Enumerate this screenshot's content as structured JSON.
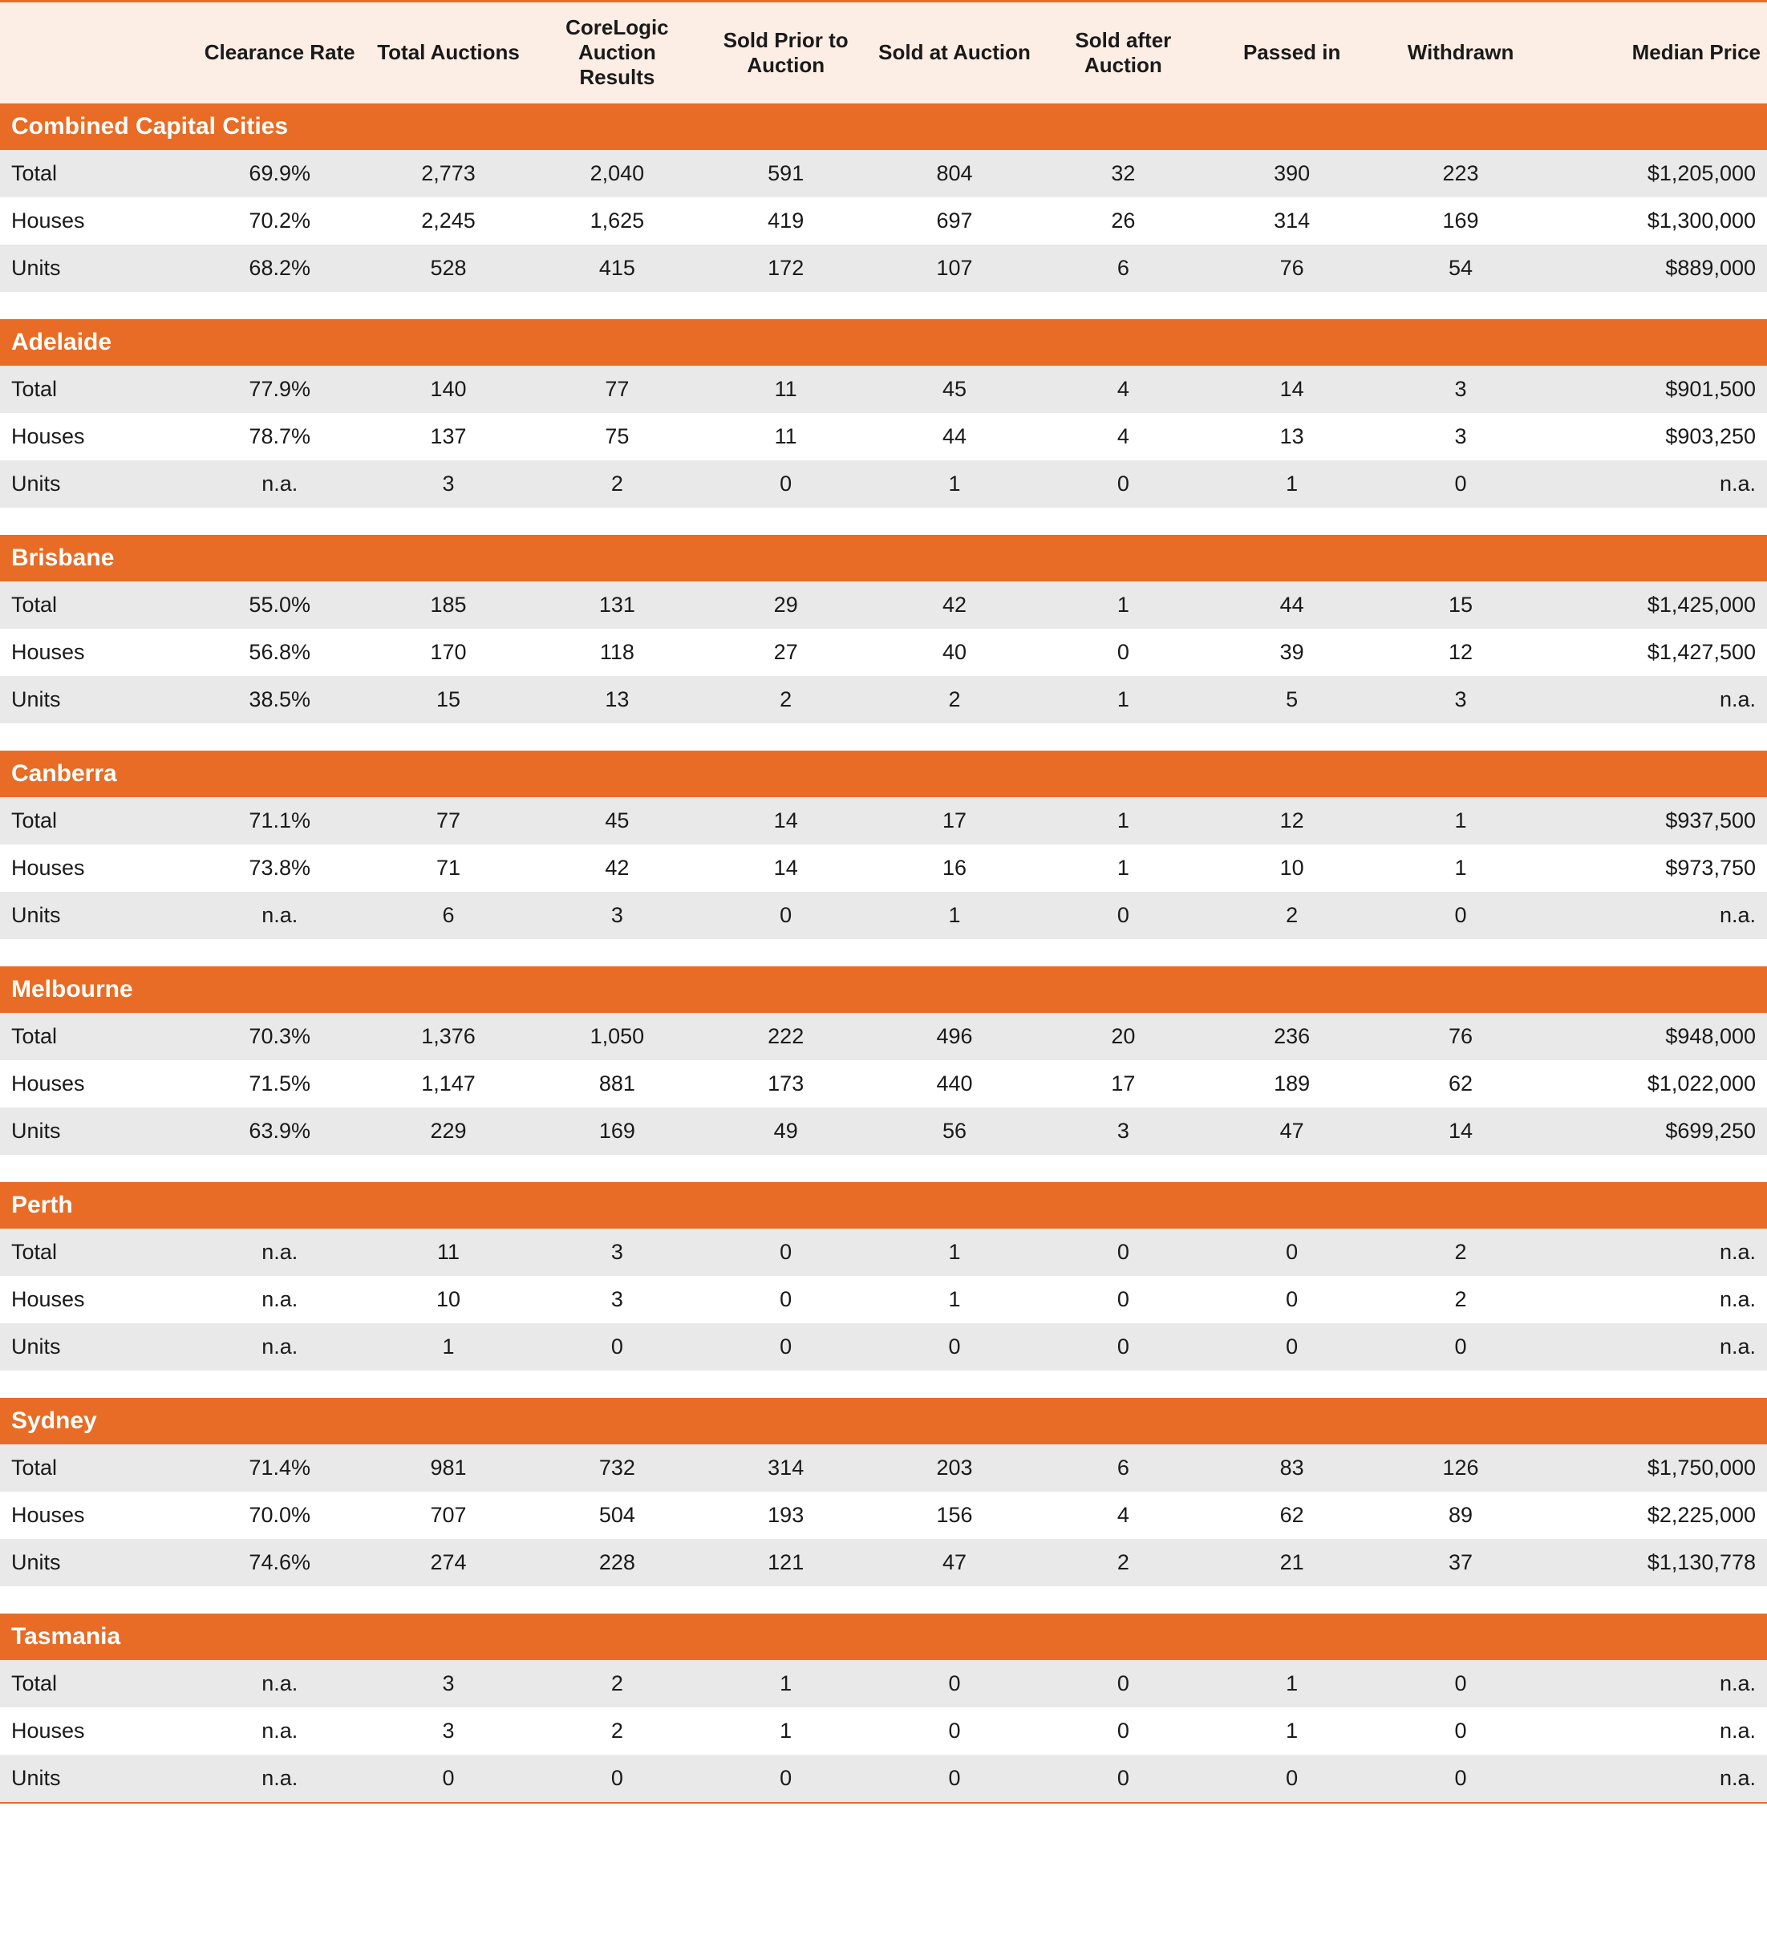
{
  "colors": {
    "accent": "#e86c25",
    "header_bg": "#fdeee5",
    "row_even": "#e9e9e9",
    "row_odd": "#ffffff",
    "text": "#1a1a1a",
    "section_text": "#ffffff"
  },
  "typography": {
    "header_fontsize": 26,
    "header_weight": 700,
    "section_fontsize": 30,
    "section_weight": 700,
    "cell_fontsize": 27,
    "cell_weight": 400
  },
  "columns": [
    "",
    "Clearance Rate",
    "Total Auctions",
    "CoreLogic Auction Results",
    "Sold Prior to Auction",
    "Sold at Auction",
    "Sold after Auction",
    "Passed in",
    "Withdrawn",
    "Median Price"
  ],
  "sections": [
    {
      "title": "Combined Capital Cities",
      "rows": [
        [
          "Total",
          "69.9%",
          "2,773",
          "2,040",
          "591",
          "804",
          "32",
          "390",
          "223",
          "$1,205,000"
        ],
        [
          "Houses",
          "70.2%",
          "2,245",
          "1,625",
          "419",
          "697",
          "26",
          "314",
          "169",
          "$1,300,000"
        ],
        [
          "Units",
          "68.2%",
          "528",
          "415",
          "172",
          "107",
          "6",
          "76",
          "54",
          "$889,000"
        ]
      ]
    },
    {
      "title": "Adelaide",
      "rows": [
        [
          "Total",
          "77.9%",
          "140",
          "77",
          "11",
          "45",
          "4",
          "14",
          "3",
          "$901,500"
        ],
        [
          "Houses",
          "78.7%",
          "137",
          "75",
          "11",
          "44",
          "4",
          "13",
          "3",
          "$903,250"
        ],
        [
          "Units",
          "n.a.",
          "3",
          "2",
          "0",
          "1",
          "0",
          "1",
          "0",
          "n.a."
        ]
      ]
    },
    {
      "title": "Brisbane",
      "rows": [
        [
          "Total",
          "55.0%",
          "185",
          "131",
          "29",
          "42",
          "1",
          "44",
          "15",
          "$1,425,000"
        ],
        [
          "Houses",
          "56.8%",
          "170",
          "118",
          "27",
          "40",
          "0",
          "39",
          "12",
          "$1,427,500"
        ],
        [
          "Units",
          "38.5%",
          "15",
          "13",
          "2",
          "2",
          "1",
          "5",
          "3",
          "n.a."
        ]
      ]
    },
    {
      "title": "Canberra",
      "rows": [
        [
          "Total",
          "71.1%",
          "77",
          "45",
          "14",
          "17",
          "1",
          "12",
          "1",
          "$937,500"
        ],
        [
          "Houses",
          "73.8%",
          "71",
          "42",
          "14",
          "16",
          "1",
          "10",
          "1",
          "$973,750"
        ],
        [
          "Units",
          "n.a.",
          "6",
          "3",
          "0",
          "1",
          "0",
          "2",
          "0",
          "n.a."
        ]
      ]
    },
    {
      "title": "Melbourne",
      "rows": [
        [
          "Total",
          "70.3%",
          "1,376",
          "1,050",
          "222",
          "496",
          "20",
          "236",
          "76",
          "$948,000"
        ],
        [
          "Houses",
          "71.5%",
          "1,147",
          "881",
          "173",
          "440",
          "17",
          "189",
          "62",
          "$1,022,000"
        ],
        [
          "Units",
          "63.9%",
          "229",
          "169",
          "49",
          "56",
          "3",
          "47",
          "14",
          "$699,250"
        ]
      ]
    },
    {
      "title": "Perth",
      "rows": [
        [
          "Total",
          "n.a.",
          "11",
          "3",
          "0",
          "1",
          "0",
          "0",
          "2",
          "n.a."
        ],
        [
          "Houses",
          "n.a.",
          "10",
          "3",
          "0",
          "1",
          "0",
          "0",
          "2",
          "n.a."
        ],
        [
          "Units",
          "n.a.",
          "1",
          "0",
          "0",
          "0",
          "0",
          "0",
          "0",
          "n.a."
        ]
      ]
    },
    {
      "title": "Sydney",
      "rows": [
        [
          "Total",
          "71.4%",
          "981",
          "732",
          "314",
          "203",
          "6",
          "83",
          "126",
          "$1,750,000"
        ],
        [
          "Houses",
          "70.0%",
          "707",
          "504",
          "193",
          "156",
          "4",
          "62",
          "89",
          "$2,225,000"
        ],
        [
          "Units",
          "74.6%",
          "274",
          "228",
          "121",
          "47",
          "2",
          "21",
          "37",
          "$1,130,778"
        ]
      ]
    },
    {
      "title": "Tasmania",
      "rows": [
        [
          "Total",
          "n.a.",
          "3",
          "2",
          "1",
          "0",
          "0",
          "1",
          "0",
          "n.a."
        ],
        [
          "Houses",
          "n.a.",
          "3",
          "2",
          "1",
          "0",
          "0",
          "1",
          "0",
          "n.a."
        ],
        [
          "Units",
          "n.a.",
          "0",
          "0",
          "0",
          "0",
          "0",
          "0",
          "0",
          "n.a."
        ]
      ]
    }
  ]
}
